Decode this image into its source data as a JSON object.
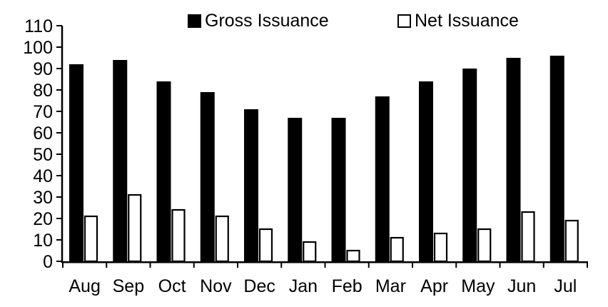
{
  "colors": {
    "gross_fill": "#000000",
    "net_fill": "#ffffff",
    "axis": "#000000",
    "background": "#ffffff",
    "text": "#000000"
  },
  "chart_data": {
    "type": "bar",
    "title": "",
    "xlabel": "",
    "ylabel": "",
    "categories": [
      "Aug",
      "Sep",
      "Oct",
      "Nov",
      "Dec",
      "Jan",
      "Feb",
      "Mar",
      "Apr",
      "May",
      "Jun",
      "Jul"
    ],
    "series": [
      {
        "name": "Gross Issuance",
        "marker": "filled-square",
        "fill": "#000000",
        "values": [
          92,
          94,
          84,
          79,
          71,
          67,
          67,
          77,
          84,
          90,
          95,
          96
        ]
      },
      {
        "name": "Net Issuance",
        "marker": "open-square",
        "fill": "#ffffff",
        "values": [
          21,
          31,
          24,
          21,
          15,
          9,
          5,
          11,
          13,
          15,
          23,
          19
        ]
      }
    ],
    "ylim": [
      0,
      110
    ],
    "ytick_step": 10,
    "yticks": [
      0,
      10,
      20,
      30,
      40,
      50,
      60,
      70,
      80,
      90,
      100,
      110
    ],
    "grid": false,
    "legend_position": "top"
  }
}
